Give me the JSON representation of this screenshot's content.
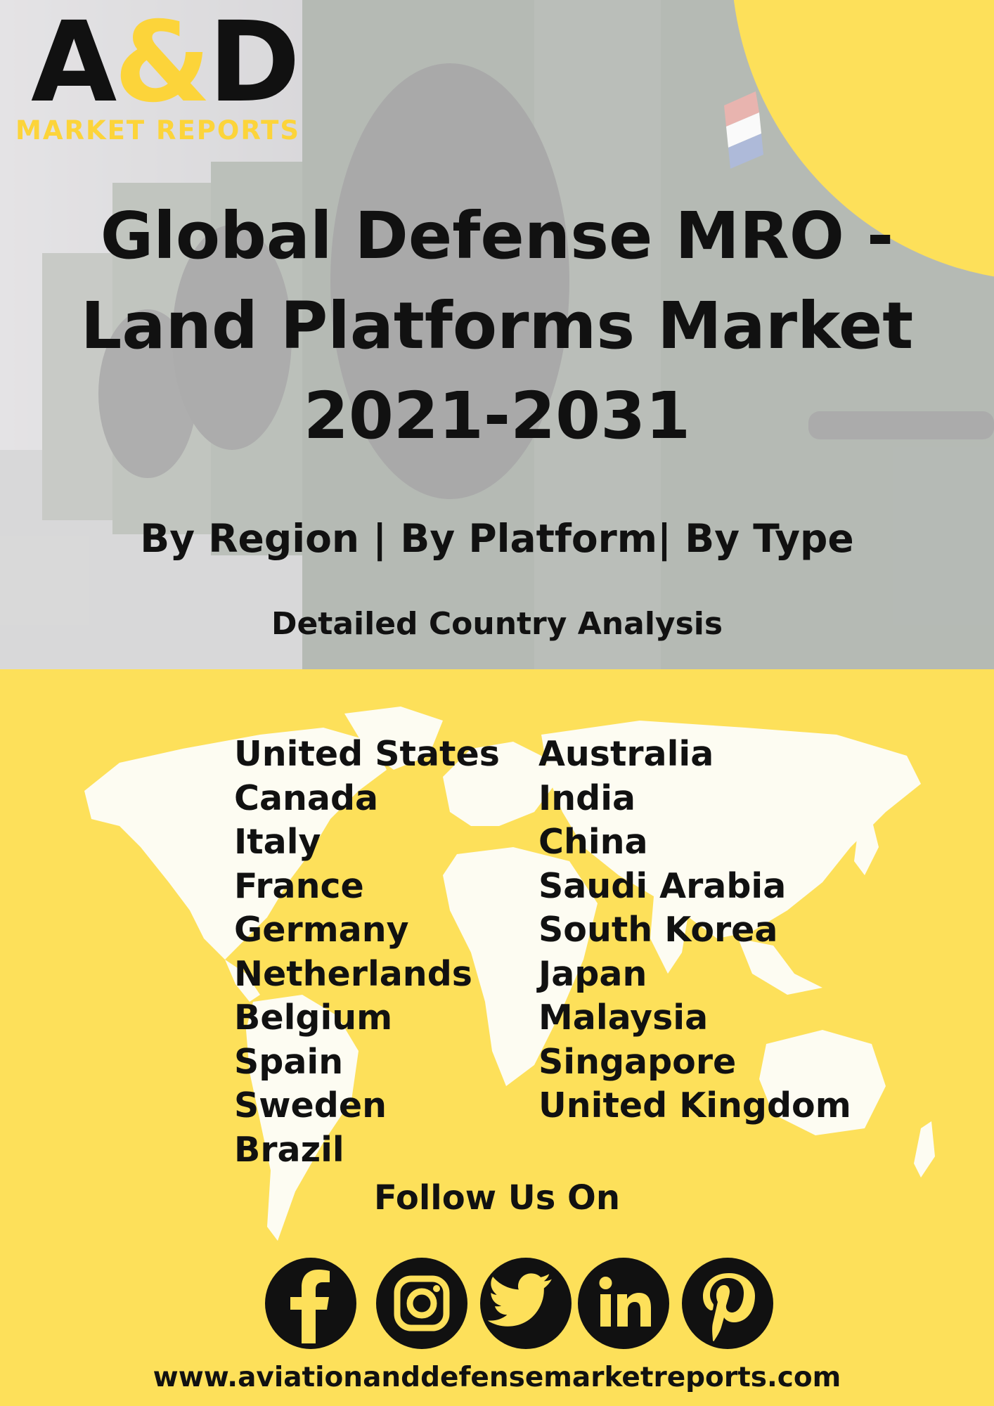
{
  "logo": {
    "letter_a": "A",
    "ampersand": "&",
    "letter_d": "D",
    "subtitle": "MARKET REPORTS"
  },
  "title": {
    "line1": "Global Defense MRO -",
    "line2": "Land Platforms Market",
    "line3": "2021-2031"
  },
  "subtitle": "By Region | By Platform| By Type",
  "detail_heading": "Detailed Country Analysis",
  "countries": {
    "column1": [
      "United States",
      "Canada",
      "Italy",
      "France",
      "Germany",
      "Netherlands",
      "Belgium",
      "Spain",
      "Sweden",
      "Brazil"
    ],
    "column2": [
      "Australia",
      "India",
      "China",
      "Saudi Arabia",
      "South Korea",
      "Japan",
      "Malaysia",
      "Singapore",
      "United Kingdom"
    ]
  },
  "follow_heading": "Follow Us On",
  "social_icons": [
    "facebook-icon",
    "instagram-icon",
    "twitter-icon",
    "linkedin-icon",
    "pinterest-icon"
  ],
  "website": "www.aviationanddefensemarketreports.com",
  "colors": {
    "accent_yellow": "#fde05a",
    "logo_yellow": "#fcd43a",
    "text": "#111111"
  }
}
